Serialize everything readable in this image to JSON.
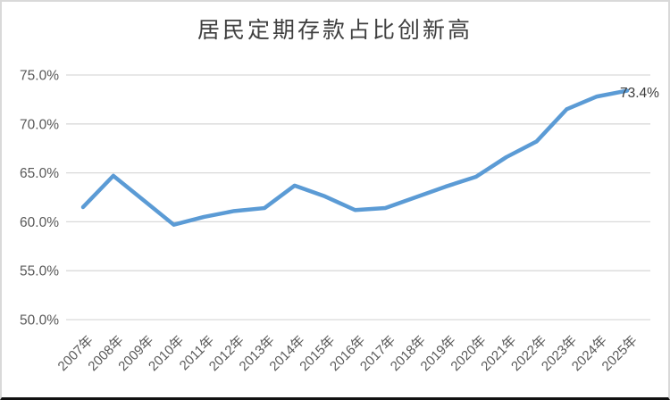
{
  "chart": {
    "colors": {
      "line": "#5B9BD5",
      "gridline": "#D9D9D9",
      "axis_text": "#595959",
      "title_text": "#404040",
      "data_label_text": "#3B3B3B",
      "frame_border": "#D9D9D9",
      "bottom_edge": "#111111",
      "background": "#FFFFFF"
    }
  },
  "chart_data": {
    "type": "line",
    "title": "居民定期存款占比创新高",
    "categories": [
      "2007年",
      "2008年",
      "2009年",
      "2010年",
      "2011年",
      "2012年",
      "2013年",
      "2014年",
      "2015年",
      "2016年",
      "2017年",
      "2018年",
      "2019年",
      "2020年",
      "2021年",
      "2022年",
      "2023年",
      "2024年",
      "2025年"
    ],
    "values": [
      61.5,
      64.7,
      62.2,
      59.7,
      60.5,
      61.1,
      61.4,
      63.7,
      62.6,
      61.2,
      61.4,
      62.5,
      63.6,
      64.6,
      66.6,
      68.2,
      71.5,
      72.8,
      73.4
    ],
    "xlabel": "",
    "ylabel": "",
    "ylim": [
      50,
      75
    ],
    "y_ticks": [
      {
        "value": 75,
        "label": "75.0%"
      },
      {
        "value": 70,
        "label": "70.0%"
      },
      {
        "value": 65,
        "label": "65.0%"
      },
      {
        "value": 60,
        "label": "60.0%"
      },
      {
        "value": 55,
        "label": "55.0%"
      },
      {
        "value": 50,
        "label": "50.0%"
      }
    ],
    "grid": true,
    "legend": "none",
    "data_label": {
      "category": "2025年",
      "text": "73.4%"
    }
  }
}
